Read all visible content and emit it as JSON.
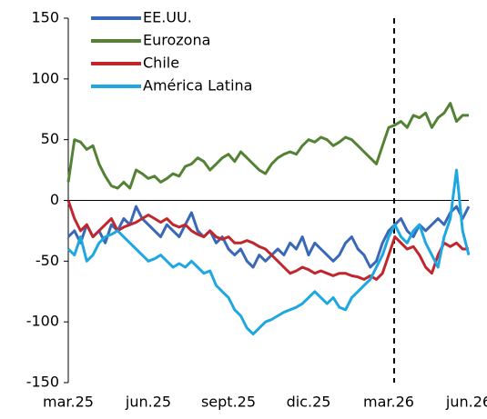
{
  "chart_data": {
    "type": "line",
    "categories": [
      "mar.25",
      null,
      null,
      null,
      null,
      null,
      null,
      null,
      null,
      null,
      null,
      null,
      null,
      "jun.25",
      null,
      null,
      null,
      null,
      null,
      null,
      null,
      null,
      null,
      null,
      null,
      null,
      "sept.25",
      null,
      null,
      null,
      null,
      null,
      null,
      null,
      null,
      null,
      null,
      null,
      null,
      "dic.25",
      null,
      null,
      null,
      null,
      null,
      null,
      null,
      null,
      null,
      null,
      null,
      null,
      "mar.26",
      null,
      null,
      null,
      null,
      null,
      null,
      null,
      null,
      null,
      null,
      null,
      null,
      "jun.26"
    ],
    "series": [
      {
        "name": "EE.UU.",
        "color": "#3a68b8",
        "values": [
          -30,
          -25,
          -35,
          -20,
          -30,
          -25,
          -35,
          -20,
          -25,
          -15,
          -20,
          -5,
          -15,
          -20,
          -25,
          -30,
          -20,
          -25,
          -30,
          -20,
          -10,
          -25,
          -30,
          -25,
          -35,
          -30,
          -40,
          -45,
          -40,
          -50,
          -55,
          -45,
          -50,
          -45,
          -40,
          -45,
          -35,
          -40,
          -30,
          -45,
          -35,
          -40,
          -45,
          -50,
          -45,
          -35,
          -30,
          -40,
          -45,
          -55,
          -50,
          -35,
          -25,
          -20,
          -15,
          -25,
          -30,
          -20,
          -25,
          -20,
          -15,
          -20,
          -10,
          -5,
          -15,
          -5
        ]
      },
      {
        "name": "Eurozona",
        "color": "#548235",
        "values": [
          15,
          50,
          48,
          42,
          45,
          30,
          20,
          12,
          10,
          15,
          10,
          25,
          22,
          18,
          20,
          15,
          18,
          22,
          20,
          28,
          30,
          35,
          32,
          25,
          30,
          35,
          38,
          32,
          40,
          35,
          30,
          25,
          22,
          30,
          35,
          38,
          40,
          38,
          45,
          50,
          48,
          52,
          50,
          45,
          48,
          52,
          50,
          45,
          40,
          35,
          30,
          45,
          60,
          62,
          65,
          60,
          70,
          68,
          72,
          60,
          68,
          72,
          80,
          65,
          70,
          70
        ]
      },
      {
        "name": "Chile",
        "color": "#c0272d",
        "values": [
          0,
          -15,
          -25,
          -20,
          -30,
          -25,
          -20,
          -15,
          -25,
          -22,
          -20,
          -18,
          -15,
          -12,
          -15,
          -18,
          -15,
          -20,
          -22,
          -20,
          -25,
          -28,
          -30,
          -25,
          -30,
          -32,
          -30,
          -35,
          -35,
          -33,
          -35,
          -38,
          -40,
          -45,
          -50,
          -55,
          -60,
          -58,
          -55,
          -57,
          -60,
          -58,
          -60,
          -62,
          -60,
          -60,
          -62,
          -63,
          -65,
          -62,
          -65,
          -60,
          -45,
          -30,
          -35,
          -40,
          -38,
          -45,
          -55,
          -60,
          -45,
          -35,
          -38,
          -35,
          -40,
          -40
        ]
      },
      {
        "name": "América Latina",
        "color": "#1ea7e1",
        "values": [
          -40,
          -45,
          -30,
          -50,
          -45,
          -35,
          -30,
          -28,
          -25,
          -30,
          -35,
          -40,
          -45,
          -50,
          -48,
          -45,
          -50,
          -55,
          -52,
          -55,
          -50,
          -55,
          -60,
          -58,
          -70,
          -75,
          -80,
          -90,
          -95,
          -105,
          -110,
          -105,
          -100,
          -98,
          -95,
          -92,
          -90,
          -88,
          -85,
          -80,
          -75,
          -80,
          -85,
          -80,
          -88,
          -90,
          -80,
          -75,
          -70,
          -65,
          -55,
          -45,
          -30,
          -20,
          -30,
          -35,
          -25,
          -20,
          -35,
          -45,
          -55,
          -30,
          -15,
          25,
          -25,
          -45
        ]
      }
    ],
    "ylim": [
      -150,
      150
    ],
    "yticks": [
      -150,
      -100,
      -50,
      0,
      50,
      100,
      150
    ]
  }
}
